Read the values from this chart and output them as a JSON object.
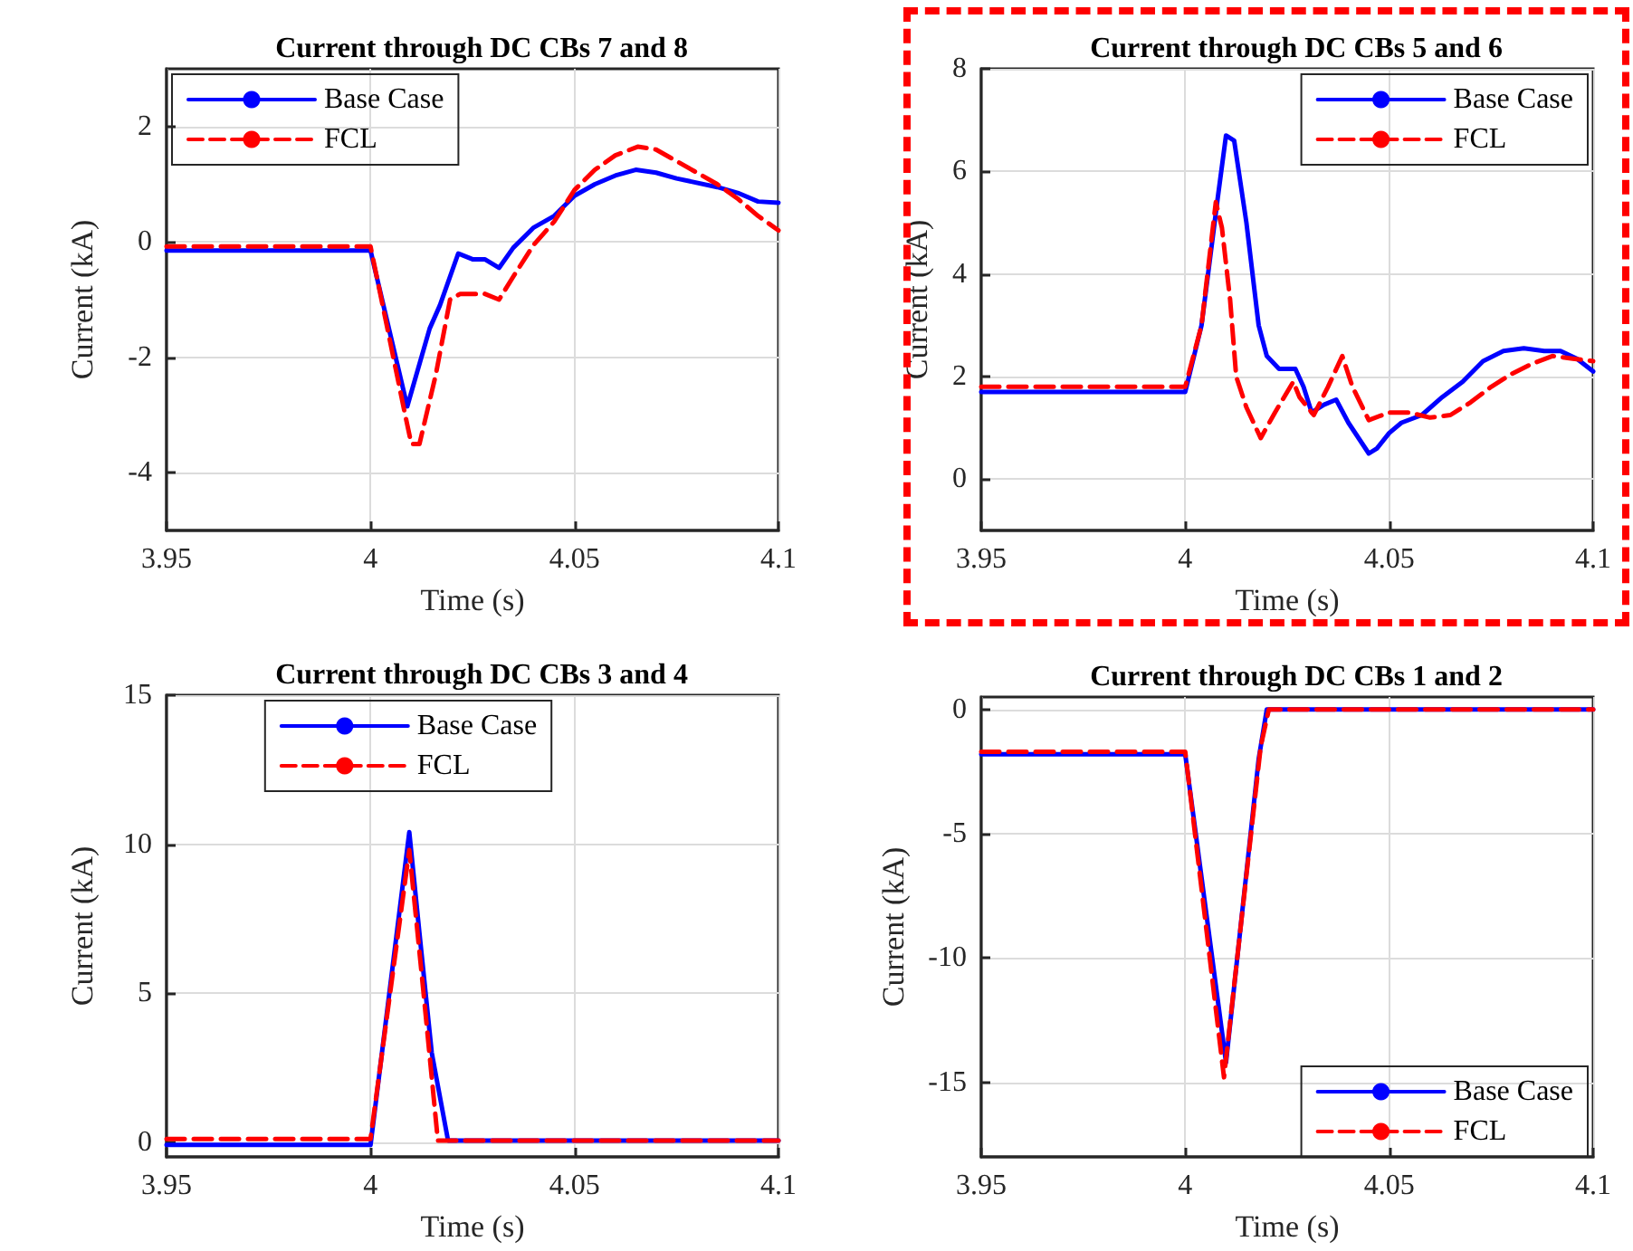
{
  "chart_data": [
    {
      "type": "line",
      "title": "Current through DC CBs 7 and 8",
      "xlabel": "Time (s)",
      "ylabel": "Current (kA)",
      "xlim": [
        3.95,
        4.1
      ],
      "xticks": [
        3.95,
        4,
        4.05,
        4.1
      ],
      "ylim": [
        -5,
        3
      ],
      "yticks": [
        -4,
        -2,
        0,
        2
      ],
      "grid": true,
      "legend": "top left",
      "marker": "none",
      "series": [
        {
          "name": "Base Case",
          "color": "#0000ff",
          "line_style": "solid",
          "x": [
            3.95,
            4.0,
            4.009,
            4.0145,
            4.017,
            4.0215,
            4.025,
            4.028,
            4.0315,
            4.035,
            4.04,
            4.045,
            4.05,
            4.055,
            4.06,
            4.065,
            4.07,
            4.075,
            4.085,
            4.09,
            4.095,
            4.1
          ],
          "values": [
            -0.15,
            -0.15,
            -2.85,
            -1.5,
            -1.1,
            -0.2,
            -0.3,
            -0.3,
            -0.45,
            -0.1,
            0.25,
            0.45,
            0.8,
            1.0,
            1.15,
            1.25,
            1.2,
            1.1,
            0.95,
            0.85,
            0.7,
            0.68
          ]
        },
        {
          "name": "FCL",
          "color": "#ff0000",
          "line_style": "dashed",
          "x": [
            3.95,
            4.0,
            4.0085,
            4.01,
            4.012,
            4.016,
            4.0195,
            4.022,
            4.028,
            4.0315,
            4.035,
            4.04,
            4.045,
            4.05,
            4.055,
            4.06,
            4.0655,
            4.07,
            4.075,
            4.08,
            4.085,
            4.09,
            4.095,
            4.1
          ],
          "values": [
            -0.08,
            -0.08,
            -3.0,
            -3.5,
            -3.5,
            -2.3,
            -1.0,
            -0.9,
            -0.9,
            -1.0,
            -0.6,
            -0.05,
            0.35,
            0.9,
            1.25,
            1.5,
            1.65,
            1.6,
            1.4,
            1.2,
            1.0,
            0.75,
            0.45,
            0.2
          ]
        }
      ]
    },
    {
      "type": "line",
      "title": "Current through DC CBs 5 and 6",
      "xlabel": "Time (s)",
      "ylabel": "Current (kA)",
      "xlim": [
        3.95,
        4.1
      ],
      "xticks": [
        3.95,
        4,
        4.05,
        4.1
      ],
      "ylim": [
        -1,
        8
      ],
      "yticks": [
        0,
        2,
        4,
        6,
        8
      ],
      "grid": true,
      "legend": "top right",
      "marker": "none",
      "series": [
        {
          "name": "Base Case",
          "color": "#0000ff",
          "line_style": "solid",
          "x": [
            3.95,
            4.0,
            4.004,
            4.008,
            4.01,
            4.012,
            4.015,
            4.018,
            4.02,
            4.023,
            4.027,
            4.029,
            4.031,
            4.034,
            4.037,
            4.04,
            4.045,
            4.047,
            4.05,
            4.053,
            4.058,
            4.063,
            4.068,
            4.073,
            4.078,
            4.083,
            4.088,
            4.092,
            4.096,
            4.1
          ],
          "values": [
            1.7,
            1.7,
            3.0,
            5.5,
            6.7,
            6.6,
            5.0,
            3.0,
            2.4,
            2.15,
            2.15,
            1.8,
            1.3,
            1.45,
            1.55,
            1.1,
            0.5,
            0.6,
            0.9,
            1.1,
            1.25,
            1.6,
            1.9,
            2.3,
            2.5,
            2.55,
            2.5,
            2.5,
            2.35,
            2.1
          ]
        },
        {
          "name": "FCL",
          "color": "#ff0000",
          "line_style": "dashed",
          "x": [
            3.95,
            4.0,
            4.004,
            4.0075,
            4.009,
            4.011,
            4.0125,
            4.015,
            4.0185,
            4.022,
            4.0265,
            4.028,
            4.0315,
            4.035,
            4.0385,
            4.041,
            4.045,
            4.05,
            4.055,
            4.06,
            4.065,
            4.07,
            4.075,
            4.08,
            4.085,
            4.09,
            4.095,
            4.1
          ],
          "values": [
            1.8,
            1.8,
            3.0,
            5.4,
            4.9,
            3.5,
            2.0,
            1.4,
            0.8,
            1.3,
            1.9,
            1.6,
            1.25,
            1.8,
            2.4,
            1.8,
            1.15,
            1.3,
            1.3,
            1.2,
            1.25,
            1.5,
            1.8,
            2.05,
            2.25,
            2.4,
            2.35,
            2.3
          ]
        }
      ]
    },
    {
      "type": "line",
      "title": "Current through DC CBs 3 and 4",
      "xlabel": "Time (s)",
      "ylabel": "Current (kA)",
      "xlim": [
        3.95,
        4.1
      ],
      "xticks": [
        3.95,
        4,
        4.05,
        4.1
      ],
      "ylim": [
        -0.5,
        15
      ],
      "yticks": [
        0,
        5,
        10,
        15
      ],
      "grid": true,
      "legend": "top",
      "marker": "none",
      "series": [
        {
          "name": "Base Case",
          "color": "#0000ff",
          "line_style": "solid",
          "x": [
            3.95,
            4.0,
            4.0095,
            4.012,
            4.015,
            4.019,
            4.1
          ],
          "values": [
            -0.1,
            -0.1,
            10.4,
            7,
            3,
            0.05,
            0.05
          ]
        },
        {
          "name": "FCL",
          "color": "#ff0000",
          "line_style": "dashed",
          "x": [
            3.95,
            4.0,
            4.0095,
            4.013,
            4.0165,
            4.1
          ],
          "values": [
            0.1,
            0.1,
            9.8,
            5,
            0.05,
            0.05
          ]
        }
      ]
    },
    {
      "type": "line",
      "title": "Current through DC CBs 1 and 2",
      "xlabel": "Time (s)",
      "ylabel": "Current (kA)",
      "xlim": [
        3.95,
        4.1
      ],
      "xticks": [
        3.95,
        4,
        4.05,
        4.1
      ],
      "ylim": [
        -18,
        0.5
      ],
      "yticks": [
        -15,
        -10,
        -5,
        0
      ],
      "grid": true,
      "legend": "bottom right",
      "marker": "none",
      "series": [
        {
          "name": "Base Case",
          "color": "#0000ff",
          "line_style": "solid",
          "x": [
            3.95,
            4.0,
            4.01,
            4.018,
            4.02,
            4.1
          ],
          "values": [
            -1.8,
            -1.8,
            -14.2,
            -2,
            0,
            0
          ]
        },
        {
          "name": "FCL",
          "color": "#ff0000",
          "line_style": "dashed",
          "x": [
            3.95,
            4.0,
            4.0095,
            4.0185,
            4.0205,
            4.1
          ],
          "values": [
            -1.7,
            -1.7,
            -14.8,
            -1.5,
            0,
            0
          ]
        }
      ]
    }
  ]
}
